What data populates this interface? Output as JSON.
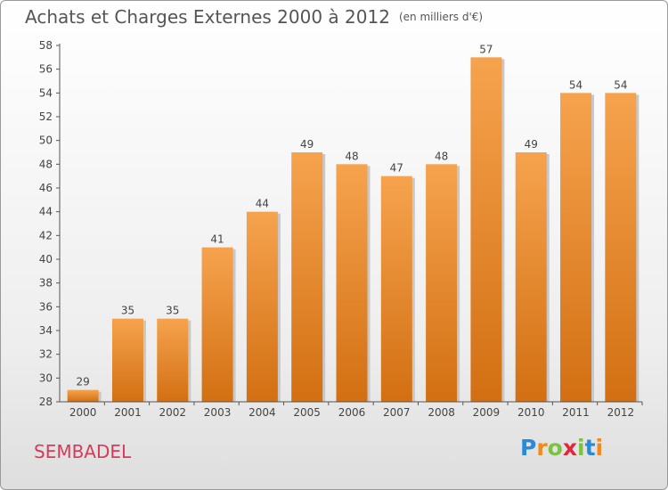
{
  "title": "Achats et Charges Externes 2000 à 2012",
  "unit": "(en milliers d'€)",
  "commune": "SEMBADEL",
  "logo": {
    "letters": [
      "P",
      "r",
      "o",
      "x",
      "i",
      "t",
      "i"
    ],
    "colors": [
      "#2a8ad8",
      "#f08a1c",
      "#7cc242",
      "#e0283c",
      "#7cc242",
      "#2a8ad8",
      "#f08a1c"
    ]
  },
  "colors": {
    "bar": "#f0922e",
    "axis": "#555555",
    "title": "#555555",
    "commune": "#d83a5a"
  },
  "chart_data": {
    "type": "bar",
    "title": "Achats et Charges Externes 2000 à 2012",
    "subtitle": "(en milliers d'€)",
    "xlabel": "",
    "ylabel": "",
    "categories": [
      "2000",
      "2001",
      "2002",
      "2003",
      "2004",
      "2005",
      "2006",
      "2007",
      "2008",
      "2009",
      "2010",
      "2011",
      "2012"
    ],
    "values": [
      29,
      35,
      35,
      41,
      44,
      49,
      48,
      47,
      48,
      57,
      49,
      54,
      54
    ],
    "ylim": [
      28,
      58
    ],
    "yticks": [
      28,
      30,
      32,
      34,
      36,
      38,
      40,
      42,
      44,
      46,
      48,
      50,
      52,
      54,
      56,
      58
    ],
    "grid": false,
    "legend": "none"
  }
}
